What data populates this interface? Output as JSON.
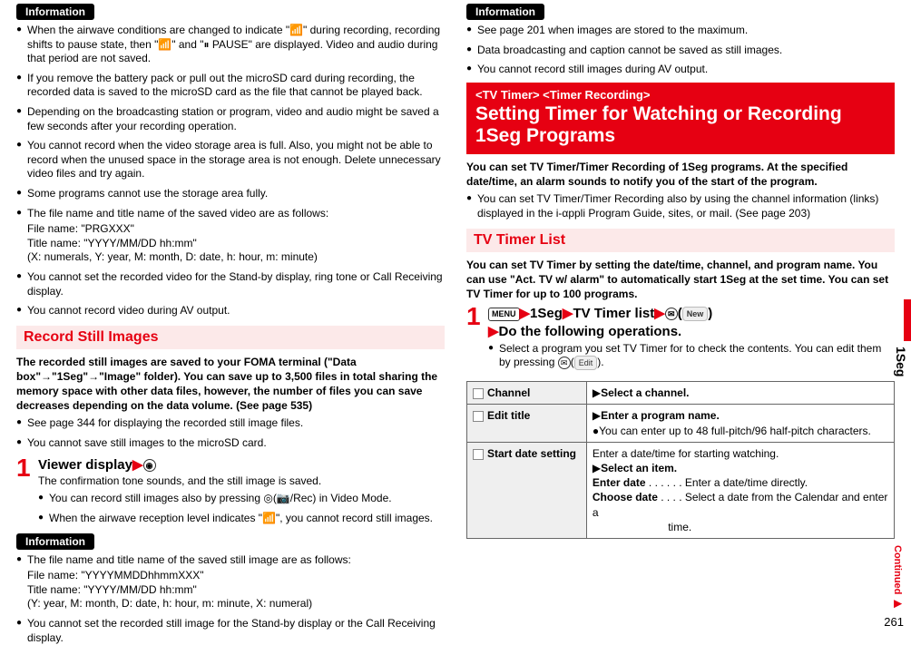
{
  "sideTab": "1Seg",
  "pageNumber": "261",
  "continued": "Continued",
  "left": {
    "infoLabel": "Information",
    "info1": [
      "When the airwave conditions are changed to indicate \"📶\" during recording, recording shifts to pause state, then \"📶\" and \"⏸ PAUSE\" are displayed. Video and audio during that period are not saved.",
      "If you remove the battery pack or pull out the microSD card during recording, the recorded data is saved to the microSD card as the file that cannot be played back.",
      "Depending on the broadcasting station or program, video and audio might be saved a few seconds after your recording operation.",
      "You cannot record when the video storage area is full. Also, you might not be able to record when the unused space in the storage area is not enough. Delete unnecessary video files and try again.",
      "Some programs cannot use the storage area fully.",
      "The file name and title name of the saved video are as follows:"
    ],
    "info1sub": [
      "File name: \"PRGXXX\"",
      "Title name: \"YYYY/MM/DD hh:mm\"",
      "(X: numerals, Y: year, M: month, D: date, h: hour, m: minute)"
    ],
    "info1b": [
      "You cannot set the recorded video for the Stand-by display, ring tone or Call Receiving display.",
      "You cannot record video during AV output."
    ],
    "sectionTitle": "Record Still Images",
    "sectionBold": "The recorded still images are saved to your FOMA terminal (\"Data box\"→\"1Seg\"→\"Image\" folder). You can save up to 3,500 files in total sharing the memory space with other data files, however, the number of files you can save decreases depending on the data volume. (See page 535)",
    "sectionBullets": [
      "See page 344 for displaying the recorded still image files.",
      "You cannot save still images to the microSD card."
    ],
    "step1Title": "Viewer display",
    "step1Lines": [
      "The confirmation tone sounds, and the still image is saved."
    ],
    "step1Bullets": [
      "You can record still images also by pressing ◎(📷/Rec) in Video Mode.",
      "When the airwave reception level indicates \"📶\", you cannot record still images."
    ],
    "info2Label": "Information",
    "info2": [
      "The file name and title name of the saved still image are as follows:"
    ],
    "info2sub": [
      "File name: \"YYYYMMDDhhmmXXX\"",
      "Title name: \"YYYY/MM/DD hh:mm\"",
      "(Y: year, M: month, D: date, h: hour, m: minute, X: numeral)"
    ],
    "info2b": [
      "You cannot set the recorded still image for the Stand-by display or the Call Receiving display."
    ]
  },
  "right": {
    "infoLabel": "Information",
    "info1": [
      "See page 201 when images are stored to the maximum.",
      "Data broadcasting and caption cannot be saved as still images.",
      "You cannot record still images during AV output."
    ],
    "featureTag": "<TV Timer> <Timer Recording>",
    "featureTitle": "Setting Timer for Watching or Recording 1Seg Programs",
    "featureBold": "You can set TV Timer/Timer Recording of 1Seg programs. At the specified date/time, an alarm sounds to notify you of the start of the program.",
    "featureBullets": [
      "You can set TV Timer/Timer Recording also by using the channel information (links) displayed in the i-αppli Program Guide, sites, or mail. (See page 203)"
    ],
    "subSection": "TV Timer List",
    "subBold": "You can set TV Timer by setting the date/time, channel, and program name. You can use \"Act. TV w/ alarm\" to automatically start 1Seg at the set time. You can set TV Timer for up to 100 programs.",
    "step1parts": {
      "menu": "MENU",
      "a": "1Seg",
      "b": "TV Timer list",
      "mail": "✉",
      "new": "New",
      "line2": "Do the following operations.",
      "edit": "Edit"
    },
    "step1Bullets": [
      "Select a program you set TV Timer for to check the contents. You can edit them by pressing ✉(Edit)."
    ],
    "table": {
      "rows": [
        {
          "icon": "Ch",
          "label": "Channel",
          "body": "▶Select a channel."
        },
        {
          "icon": "N",
          "label": "Edit title",
          "body": "▶Enter a program name.\n●You can enter up to 48 full-pitch/96 half-pitch characters."
        },
        {
          "icon": "⏰",
          "label": "Start date setting",
          "body": "Enter a date/time for starting watching.\n▶Select an item.\nEnter date . . . . . .  Enter a date/time directly.\nChoose date . . . .  Select a date from the Calendar and enter a time."
        }
      ]
    }
  }
}
